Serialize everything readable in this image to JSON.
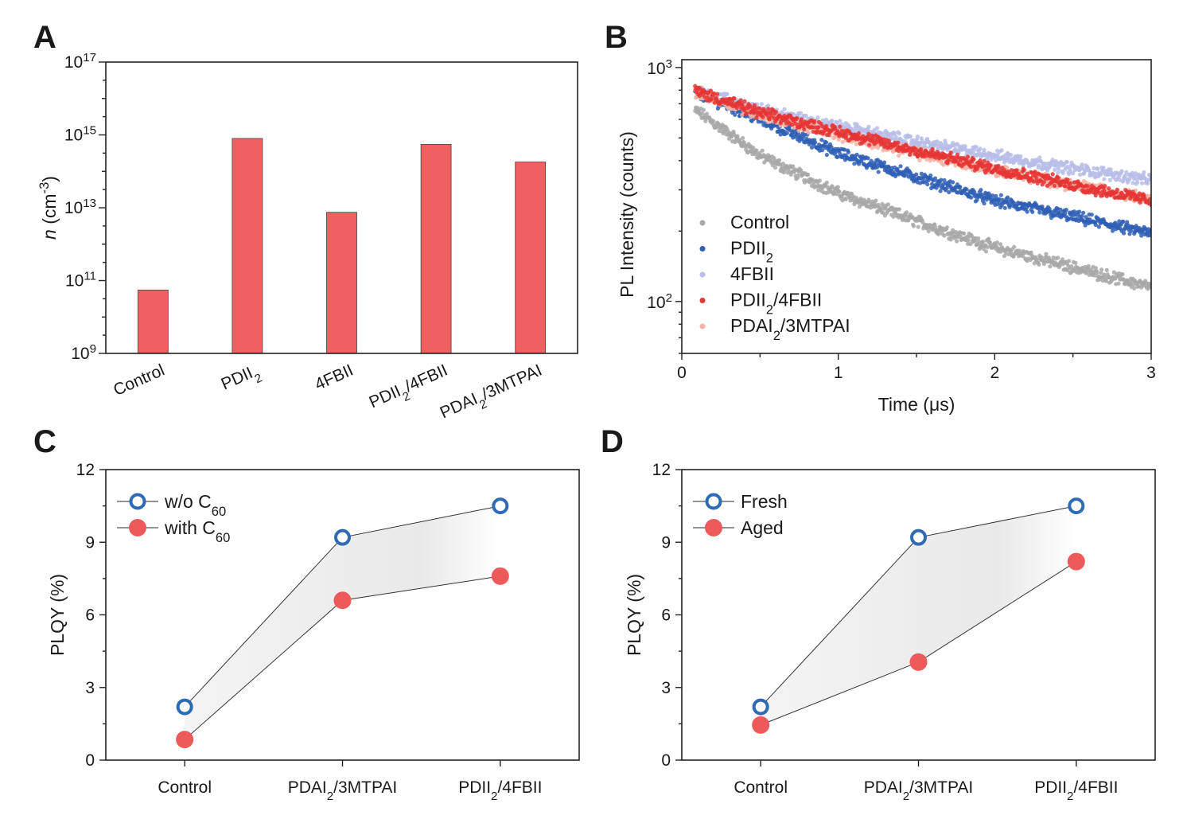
{
  "panels": {
    "a": "A",
    "b": "B",
    "c": "C",
    "d": "D"
  },
  "colors": {
    "bar": "#ef6060",
    "control": "#a8a8a8",
    "pdii2": "#2f5fb5",
    "fourfbii": "#b9bde8",
    "pdii2_4fbii": "#e53535",
    "pdai2_3mtpai": "#f6b2a2",
    "open_marker": "#2f6ab5",
    "filled_marker": "#ee5a5a"
  },
  "chart_data": [
    {
      "type": "bar",
      "panel": "A",
      "ylabel": "n (cm-3)",
      "yscale": "log",
      "ylim": [
        1000000000.0,
        1e+17
      ],
      "yticks": [
        "10^9",
        "10^11",
        "10^13",
        "10^15",
        "10^17"
      ],
      "categories": [
        "Control",
        "PDII2",
        "4FBII",
        "PDII2/4FBII",
        "PDAI2/3MTPAI"
      ],
      "values": [
        55000000000.0,
        800000000000000.0,
        7500000000000.0,
        550000000000000.0,
        180000000000000.0
      ]
    },
    {
      "type": "scatter",
      "panel": "B",
      "xlabel": "Time (μs)",
      "ylabel": "PL Intensity (counts)",
      "xlim": [
        0,
        3
      ],
      "ylim": [
        60,
        1080
      ],
      "yscale": "log",
      "xticks": [
        "0",
        "1",
        "2",
        "3"
      ],
      "yticks": [
        "10^2",
        "10^3"
      ],
      "series": [
        {
          "name": "Control",
          "x": [
            0.1,
            0.5,
            1.0,
            1.5,
            2.0,
            2.5,
            3.0
          ],
          "values": [
            650,
            420,
            290,
            220,
            170,
            140,
            115
          ]
        },
        {
          "name": "PDII2",
          "x": [
            0.1,
            0.5,
            1.0,
            1.5,
            2.0,
            2.5,
            3.0
          ],
          "values": [
            780,
            600,
            430,
            340,
            270,
            230,
            195
          ]
        },
        {
          "name": "4FBII",
          "x": [
            0.1,
            0.5,
            1.0,
            1.5,
            2.0,
            2.5,
            3.0
          ],
          "values": [
            800,
            660,
            560,
            480,
            420,
            370,
            330
          ]
        },
        {
          "name": "PDII2/4FBII",
          "x": [
            0.1,
            0.5,
            1.0,
            1.5,
            2.0,
            2.5,
            3.0
          ],
          "values": [
            790,
            640,
            530,
            440,
            370,
            315,
            270
          ]
        },
        {
          "name": "PDAI2/3MTPAI",
          "x": [
            0.1,
            0.5,
            1.0,
            1.5,
            2.0,
            2.5,
            3.0
          ],
          "values": [
            780,
            630,
            520,
            430,
            365,
            315,
            275
          ]
        }
      ]
    },
    {
      "type": "line",
      "panel": "C",
      "ylabel": "PLQY (%)",
      "ylim": [
        0,
        12
      ],
      "yticks": [
        "0",
        "3",
        "6",
        "9",
        "12"
      ],
      "categories": [
        "Control",
        "PDAI2/3MTPAI",
        "PDII2/4FBII"
      ],
      "series": [
        {
          "name": "w/o C60",
          "values": [
            2.2,
            9.2,
            10.5
          ]
        },
        {
          "name": "with C60",
          "values": [
            0.85,
            6.6,
            7.6
          ]
        }
      ]
    },
    {
      "type": "line",
      "panel": "D",
      "ylabel": "PLQY (%)",
      "ylim": [
        0,
        12
      ],
      "yticks": [
        "0",
        "3",
        "6",
        "9",
        "12"
      ],
      "categories": [
        "Control",
        "PDAI2/3MTPAI",
        "PDII2/4FBII"
      ],
      "series": [
        {
          "name": "Fresh",
          "values": [
            2.2,
            9.2,
            10.5
          ]
        },
        {
          "name": "Aged",
          "values": [
            1.45,
            4.05,
            8.2
          ]
        }
      ]
    }
  ]
}
